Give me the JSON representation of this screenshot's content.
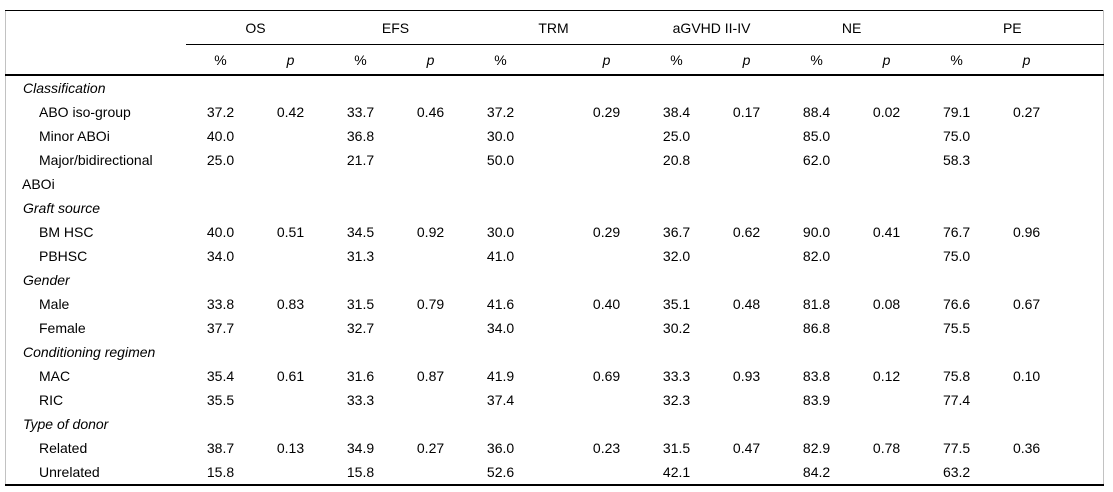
{
  "table": {
    "groups": [
      {
        "label": "OS"
      },
      {
        "label": "EFS"
      },
      {
        "label": "TRM"
      },
      {
        "label": "aGVHD II-IV"
      },
      {
        "label": "NE"
      },
      {
        "label": "PE"
      }
    ],
    "subheader": {
      "percent": "%",
      "p": "p"
    },
    "rows": [
      {
        "kind": "section",
        "label": "Classification",
        "values": []
      },
      {
        "kind": "item",
        "label": "ABO iso-group",
        "values": [
          "37.2",
          "0.42",
          "33.7",
          "0.46",
          "37.2",
          "0.29",
          "38.4",
          "0.17",
          "88.4",
          "0.02",
          "79.1",
          "0.27"
        ]
      },
      {
        "kind": "item",
        "label": "Minor ABOi",
        "values": [
          "40.0",
          "",
          "36.8",
          "",
          "30.0",
          "",
          "25.0",
          "",
          "85.0",
          "",
          "75.0",
          ""
        ]
      },
      {
        "kind": "item",
        "label": "Major/bidirectional",
        "values": [
          "25.0",
          "",
          "21.7",
          "",
          "50.0",
          "",
          "20.8",
          "",
          "62.0",
          "",
          "58.3",
          ""
        ]
      },
      {
        "kind": "continuation",
        "label": "ABOi",
        "values": []
      },
      {
        "kind": "section",
        "label": "Graft source",
        "values": []
      },
      {
        "kind": "item",
        "label": "BM HSC",
        "values": [
          "40.0",
          "0.51",
          "34.5",
          "0.92",
          "30.0",
          "0.29",
          "36.7",
          "0.62",
          "90.0",
          "0.41",
          "76.7",
          "0.96"
        ]
      },
      {
        "kind": "item",
        "label": "PBHSC",
        "values": [
          "34.0",
          "",
          "31.3",
          "",
          "41.0",
          "",
          "32.0",
          "",
          "82.0",
          "",
          "75.0",
          ""
        ]
      },
      {
        "kind": "section",
        "label": "Gender",
        "values": []
      },
      {
        "kind": "item",
        "label": "Male",
        "values": [
          "33.8",
          "0.83",
          "31.5",
          "0.79",
          "41.6",
          "0.40",
          "35.1",
          "0.48",
          "81.8",
          "0.08",
          "76.6",
          "0.67"
        ]
      },
      {
        "kind": "item",
        "label": "Female",
        "values": [
          "37.7",
          "",
          "32.7",
          "",
          "34.0",
          "",
          "30.2",
          "",
          "86.8",
          "",
          "75.5",
          ""
        ]
      },
      {
        "kind": "section",
        "label": "Conditioning regimen",
        "values": []
      },
      {
        "kind": "item",
        "label": "MAC",
        "values": [
          "35.4",
          "0.61",
          "31.6",
          "0.87",
          "41.9",
          "0.69",
          "33.3",
          "0.93",
          "83.8",
          "0.12",
          "75.8",
          "0.10"
        ]
      },
      {
        "kind": "item",
        "label": "RIC",
        "values": [
          "35.5",
          "",
          "33.3",
          "",
          "37.4",
          "",
          "32.3",
          "",
          "83.9",
          "",
          "77.4",
          ""
        ]
      },
      {
        "kind": "section",
        "label": "Type of donor",
        "values": []
      },
      {
        "kind": "item",
        "label": "Related",
        "values": [
          "38.7",
          "0.13",
          "34.9",
          "0.27",
          "36.0",
          "0.23",
          "31.5",
          "0.47",
          "82.9",
          "0.78",
          "77.5",
          "0.36"
        ]
      },
      {
        "kind": "item",
        "label": "Unrelated",
        "values": [
          "15.8",
          "",
          "15.8",
          "",
          "52.6",
          "",
          "42.1",
          "",
          "84.2",
          "",
          "63.2",
          ""
        ]
      }
    ]
  }
}
